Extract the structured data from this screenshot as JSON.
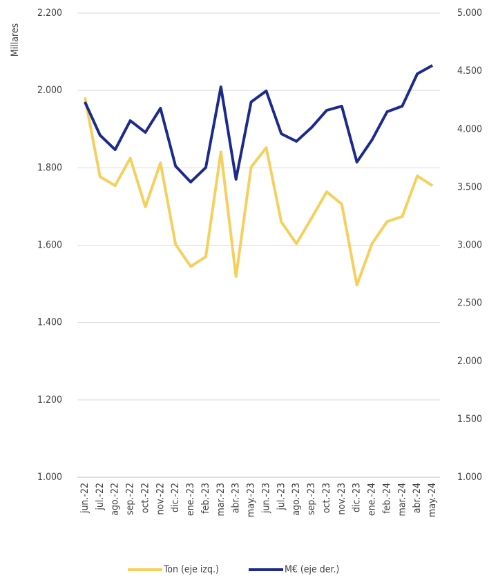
{
  "chart_data": {
    "type": "line",
    "y_label": "Millares",
    "categories": [
      "jun.-22",
      "jul.-22",
      "ago.-22",
      "sep.-22",
      "oct.-22",
      "nov.-22",
      "dic.-22",
      "ene.-23",
      "feb.-23",
      "mar.-23",
      "abr.-23",
      "may.-23",
      "jun.-23",
      "jul.-23",
      "ago.-23",
      "sep.-23",
      "oct.-23",
      "nov.-23",
      "dic.-23",
      "ene.-24",
      "feb.-24",
      "mar.-24",
      "abr.-24",
      "may.-24"
    ],
    "series": [
      {
        "name": "Ton (eje izq.)",
        "color": "#f5d05e",
        "values": [
          1982,
          1777,
          1754,
          1825,
          1699,
          1813,
          1602,
          1545,
          1570,
          1841,
          1519,
          1802,
          1852,
          1660,
          1604,
          1670,
          1738,
          1706,
          1497,
          1604,
          1661,
          1674,
          1779,
          1754
        ]
      },
      {
        "name": "M€ (eje der.)",
        "color": "#1c2a8c",
        "axis": "y2",
        "values": [
          4234,
          3948,
          3823,
          4073,
          3972,
          4180,
          3681,
          3544,
          3669,
          4364,
          3568,
          4234,
          4329,
          3960,
          3895,
          4014,
          4162,
          4198,
          3716,
          3907,
          4150,
          4198,
          4477,
          4549
        ]
      }
    ],
    "ylim": [
      1000,
      2200
    ],
    "yticks": [
      {
        "value": 1000,
        "label": "1.000"
      },
      {
        "value": 1200,
        "label": "1.200"
      },
      {
        "value": 1400,
        "label": "1.400"
      },
      {
        "value": 1600,
        "label": "1.600"
      },
      {
        "value": 1800,
        "label": "1.800"
      },
      {
        "value": 2000,
        "label": "2.000"
      },
      {
        "value": 2200,
        "label": "2.200"
      }
    ],
    "y2lim": [
      1000,
      5000
    ],
    "y2ticks": [
      {
        "value": 1000,
        "label": "1.000"
      },
      {
        "value": 1500,
        "label": "1.500"
      },
      {
        "value": 2000,
        "label": "2.000"
      },
      {
        "value": 2500,
        "label": "2.500"
      },
      {
        "value": 3000,
        "label": "3.000"
      },
      {
        "value": 3500,
        "label": "3.500"
      },
      {
        "value": 4000,
        "label": "4.000"
      },
      {
        "value": 4500,
        "label": "4.500"
      },
      {
        "value": 5000,
        "label": "5.000"
      }
    ],
    "grid": true
  }
}
